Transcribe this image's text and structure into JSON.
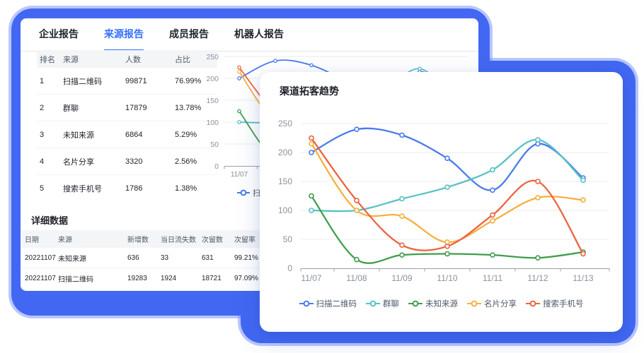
{
  "colors": {
    "frame_blue": "#4268f3",
    "frame_halo": "#8099f7",
    "active_tab": "#3370ff",
    "text_dark": "#1d2129",
    "text_gray": "#4e5969",
    "axis_gray": "#8a919f",
    "grid_line": "#ededed"
  },
  "tabs": {
    "items": [
      {
        "label": "企业报告",
        "active": false
      },
      {
        "label": "来源报告",
        "active": true
      },
      {
        "label": "成员报告",
        "active": false
      },
      {
        "label": "机器人报告",
        "active": false
      }
    ]
  },
  "rank_table": {
    "headers": [
      "排名",
      "来源",
      "人数",
      "占比"
    ],
    "rows": [
      [
        "1",
        "扫描二维码",
        "99871",
        "76.99%"
      ],
      [
        "2",
        "群聊",
        "17879",
        "13.78%"
      ],
      [
        "3",
        "未知来源",
        "6864",
        "5.29%"
      ],
      [
        "4",
        "名片分享",
        "3320",
        "2.56%"
      ],
      [
        "5",
        "搜索手机号",
        "1786",
        "1.38%"
      ]
    ]
  },
  "detail_section": {
    "title": "详细数据",
    "headers": [
      "日期",
      "来源",
      "新增数",
      "当日流失数",
      "次留数",
      "次留率"
    ],
    "rows": [
      [
        "20221107",
        "未知来源",
        "636",
        "33",
        "631",
        "99.21%"
      ],
      [
        "20221107",
        "扫描二维码",
        "19283",
        "1924",
        "18721",
        "97.09%"
      ]
    ]
  },
  "popup": {
    "title": "渠道拓客趋势"
  },
  "chart_data": {
    "type": "line",
    "title": "渠道拓客趋势",
    "categories": [
      "11/07",
      "11/08",
      "11/09",
      "11/10",
      "11/11",
      "11/12",
      "11/13"
    ],
    "series": [
      {
        "name": "扫描二维码",
        "color": "#4a7bec",
        "values": [
          200,
          240,
          230,
          190,
          135,
          215,
          156
        ]
      },
      {
        "name": "群聊",
        "color": "#58c1c6",
        "values": [
          100,
          100,
          120,
          140,
          170,
          222,
          152
        ]
      },
      {
        "name": "未知来源",
        "color": "#3f9e4d",
        "values": [
          125,
          15,
          23,
          25,
          23,
          18,
          28
        ]
      },
      {
        "name": "名片分享",
        "color": "#f5b03f",
        "values": [
          215,
          100,
          90,
          45,
          82,
          122,
          118
        ]
      },
      {
        "name": "搜索手机号",
        "color": "#ec6440",
        "values": [
          225,
          117,
          40,
          38,
          92,
          150,
          25
        ]
      }
    ],
    "xlabel": "",
    "ylabel": "",
    "ylim": [
      0,
      250
    ],
    "ytick_step": 50,
    "grid": true,
    "smooth": true,
    "legend_position": "bottom"
  }
}
